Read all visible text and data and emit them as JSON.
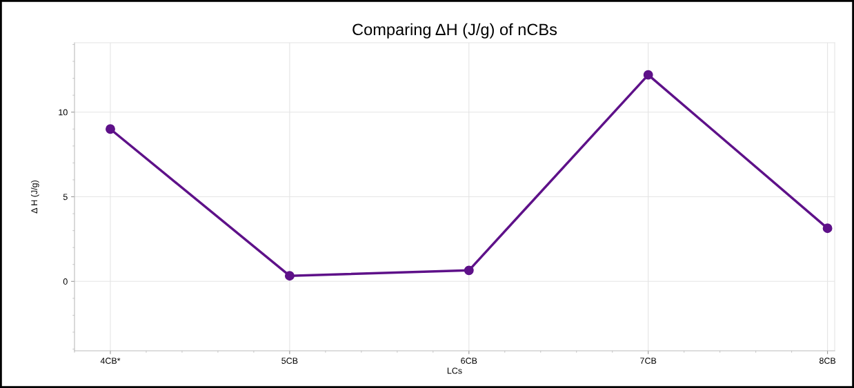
{
  "chart_data": {
    "type": "line",
    "title": "Comparing ΔH (J/g) of nCBs",
    "xlabel": "LCs",
    "ylabel": "Δ H (J/g)",
    "categories": [
      "4CB*",
      "5CB",
      "6CB",
      "7CB",
      "8CB"
    ],
    "series": [
      {
        "color": "#5e1189",
        "values": [
          9.0,
          0.33,
          0.65,
          12.2,
          3.14
        ]
      }
    ],
    "ylim": [
      -4.1,
      14.1
    ],
    "yticks": [
      0,
      5,
      10
    ],
    "grid": true,
    "marker": "circle",
    "line_style": "solid"
  }
}
